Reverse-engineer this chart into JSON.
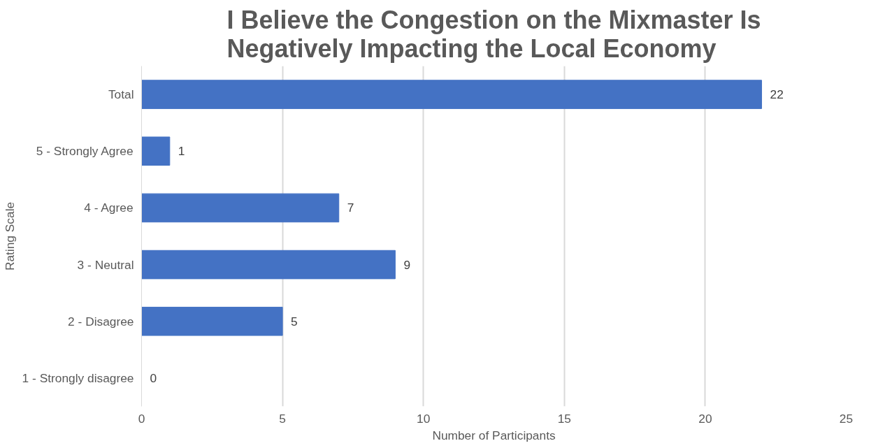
{
  "chart_data": {
    "type": "bar",
    "orientation": "horizontal",
    "title": "I Believe the Congestion on the Mixmaster Is\nNegatively Impacting the Local Economy",
    "xlabel": "Number of Participants",
    "ylabel": "Rating Scale",
    "categories": [
      "Total",
      "5 - Strongly Agree",
      "4 - Agree",
      "3 - Neutral",
      "2 - Disagree",
      "1 - Strongly disagree"
    ],
    "values": [
      22,
      1,
      7,
      9,
      5,
      0
    ],
    "color": "#4472c4",
    "xlim": [
      0,
      25
    ],
    "xticks": [
      0,
      5,
      10,
      15,
      20,
      25
    ],
    "grid": "x",
    "data_labels": true
  }
}
